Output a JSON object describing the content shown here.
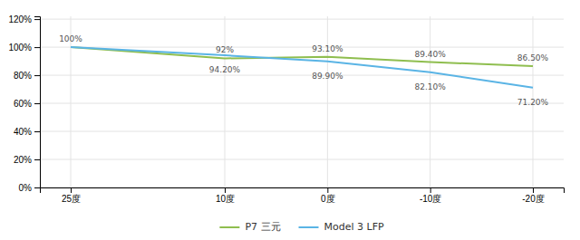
{
  "chart_data": {
    "type": "line",
    "x": [
      25,
      10,
      0,
      -10,
      -20
    ],
    "xlim": [
      28,
      -23
    ],
    "xticks": [
      {
        "value": 25,
        "label": "25度"
      },
      {
        "value": 10,
        "label": "10度"
      },
      {
        "value": 0,
        "label": "0度"
      },
      {
        "value": -10,
        "label": "-10度"
      },
      {
        "value": -20,
        "label": "-20度"
      }
    ],
    "ylim": [
      0,
      122
    ],
    "yticks": [
      {
        "value": 0,
        "label": "0%"
      },
      {
        "value": 20,
        "label": "20%"
      },
      {
        "value": 40,
        "label": "40%"
      },
      {
        "value": 60,
        "label": "60%"
      },
      {
        "value": 80,
        "label": "80%"
      },
      {
        "value": 100,
        "label": "100%"
      },
      {
        "value": 120,
        "label": "120%"
      }
    ],
    "series": [
      {
        "name": "P7 三元",
        "color": "#8fbe4f",
        "values": [
          100,
          92,
          93.1,
          89.4,
          86.5
        ],
        "value_labels": [
          "100%",
          "92%",
          "93.10%",
          "89.40%",
          "86.50%"
        ]
      },
      {
        "name": "Model 3 LFP",
        "color": "#5ab4e5",
        "values": [
          100,
          94.2,
          89.9,
          82.1,
          71.2
        ],
        "value_labels": [
          null,
          "94.20%",
          "89.90%",
          "82.10%",
          "71.20%"
        ]
      }
    ],
    "data_labels": true,
    "grid": true,
    "legend": "bottom"
  }
}
